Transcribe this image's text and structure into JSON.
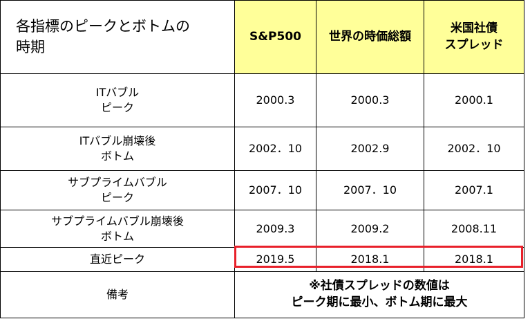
{
  "title": [
    "各指標のピークとボトムの",
    "時期"
  ],
  "columns": [
    "S&P500",
    "世界の時価総額",
    [
      "米国社債",
      "スプレッド"
    ]
  ],
  "rows": [
    {
      "label": [
        "ITバブル",
        "ピーク"
      ],
      "values": [
        "2000.3",
        "2000.3",
        "2000.1"
      ]
    },
    {
      "label": [
        "ITバブル崩壊後",
        "ボトム"
      ],
      "values": [
        "2002．10",
        "2002.9",
        "2002．10"
      ]
    },
    {
      "label": [
        "サブプライムバブル",
        "ピーク"
      ],
      "values": [
        "2007．10",
        "2007．10",
        "2007.1"
      ]
    },
    {
      "label": [
        "サブプライムバブル崩壊後",
        "ボトム"
      ],
      "values": [
        "2009.3",
        "2009.2",
        "2008.11"
      ]
    },
    {
      "label": [
        "直近ピーク"
      ],
      "values": [
        "2019.5",
        "2018.1",
        "2018.1"
      ]
    }
  ],
  "remarks": {
    "label": "備考",
    "text": [
      "※社債スプレッドの数値は",
      "ピーク期に最小、ボトム期に最大"
    ]
  },
  "colors": {
    "header_fill": "#ffff99",
    "highlight_border": "#e8202a"
  }
}
